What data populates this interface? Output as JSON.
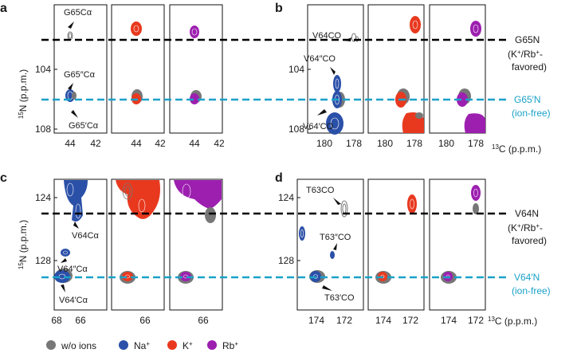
{
  "figure": {
    "panels": [
      {
        "letter": "a",
        "y_axis_label": "15N (p.p.m.)",
        "x_ticks": [
          "44",
          "42"
        ],
        "y_ticks": [
          "104",
          "108"
        ],
        "annotations": [
          "G65Cα",
          "G65″Cα",
          "G65′Cα"
        ],
        "reference_lines": [
          {
            "nucleus": "G65N",
            "note": "(K+/Rb+-favored)",
            "state": "K+/Rb+-favored"
          },
          {
            "nucleus": "G65′N",
            "note": "(ion-free)",
            "state": "ion-free"
          }
        ]
      },
      {
        "letter": "b",
        "x_axis_label": "13C (p.p.m.)",
        "x_ticks": [
          "180",
          "178"
        ],
        "y_ticks": [
          "104",
          "108"
        ],
        "annotations": [
          "V64CO",
          "V64″CO",
          "V64′CO"
        ]
      },
      {
        "letter": "c",
        "y_axis_label": "15N (p.p.m.)",
        "x_ticks": [
          "68",
          "66"
        ],
        "y_ticks": [
          "124",
          "128"
        ],
        "annotations": [
          "V64Cα",
          "V64″Cα",
          "V64′Cα"
        ]
      },
      {
        "letter": "d",
        "x_axis_label": "13C (p.p.m.)",
        "x_ticks": [
          "174",
          "172"
        ],
        "y_ticks": [
          "124",
          "128"
        ],
        "annotations": [
          "T63CO",
          "T63″CO",
          "T63′CO"
        ],
        "reference_lines": [
          {
            "nucleus": "V64N",
            "note": "(K+/Rb+-favored)",
            "state": "K+/Rb+-favored"
          },
          {
            "nucleus": "V64′N",
            "note": "(ion-free)",
            "state": "ion-free"
          }
        ]
      }
    ],
    "legend": [
      {
        "label": "w/o ions",
        "color": "#777777"
      },
      {
        "label": "Na+",
        "color": "#2b50a8"
      },
      {
        "label": "K+",
        "color": "#e8391f"
      },
      {
        "label": "Rb+",
        "color": "#9d1fb0"
      }
    ],
    "colors": {
      "ion_free_line": "#1aa1c9",
      "favored_line": "#000000",
      "free": "#777777",
      "na": "#2b50a8",
      "k": "#e8391f",
      "rb": "#9d1fb0"
    }
  }
}
